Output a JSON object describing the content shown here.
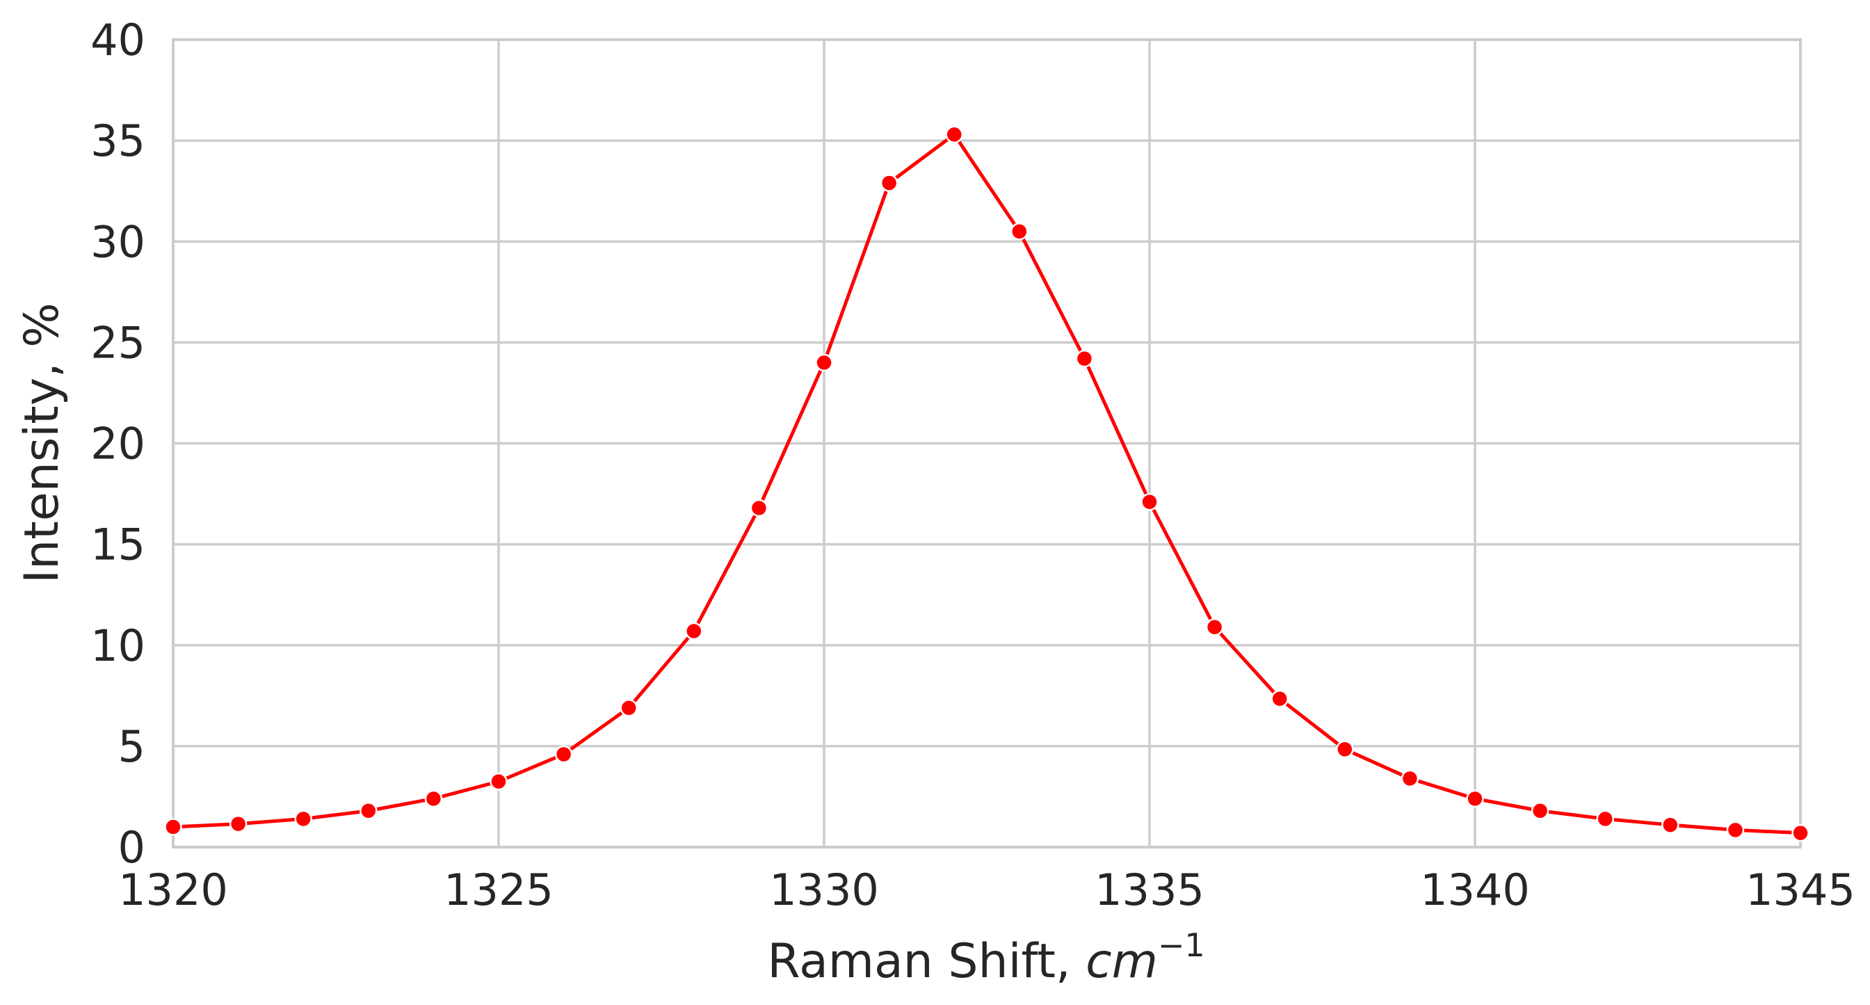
{
  "chart_data": {
    "type": "line",
    "xlabel": "Raman Shift, ",
    "xlabel_unit": "cm",
    "xlabel_unit_exponent": "−1",
    "ylabel": "Intensity, %",
    "xlim": [
      1320,
      1345
    ],
    "ylim": [
      0,
      40
    ],
    "xticks": [
      1320,
      1325,
      1330,
      1335,
      1340,
      1345
    ],
    "yticks": [
      0,
      5,
      10,
      15,
      20,
      25,
      30,
      35,
      40
    ],
    "grid": true,
    "legend": "none",
    "line_color": "#ff0000",
    "marker_color": "#ff0000",
    "marker": "circle",
    "series": [
      {
        "x": [
          1320,
          1321,
          1322,
          1323,
          1324,
          1325,
          1326,
          1327,
          1328,
          1329,
          1330,
          1331,
          1332,
          1333,
          1334,
          1335,
          1336,
          1337,
          1338,
          1339,
          1340,
          1341,
          1342,
          1343,
          1344,
          1345
        ],
        "y": [
          1.0,
          1.15,
          1.4,
          1.8,
          2.4,
          3.25,
          4.6,
          6.9,
          10.7,
          16.8,
          24.0,
          32.9,
          35.3,
          30.5,
          24.2,
          17.1,
          10.9,
          7.35,
          4.85,
          3.4,
          2.4,
          1.8,
          1.4,
          1.1,
          0.85,
          0.7
        ]
      }
    ]
  }
}
